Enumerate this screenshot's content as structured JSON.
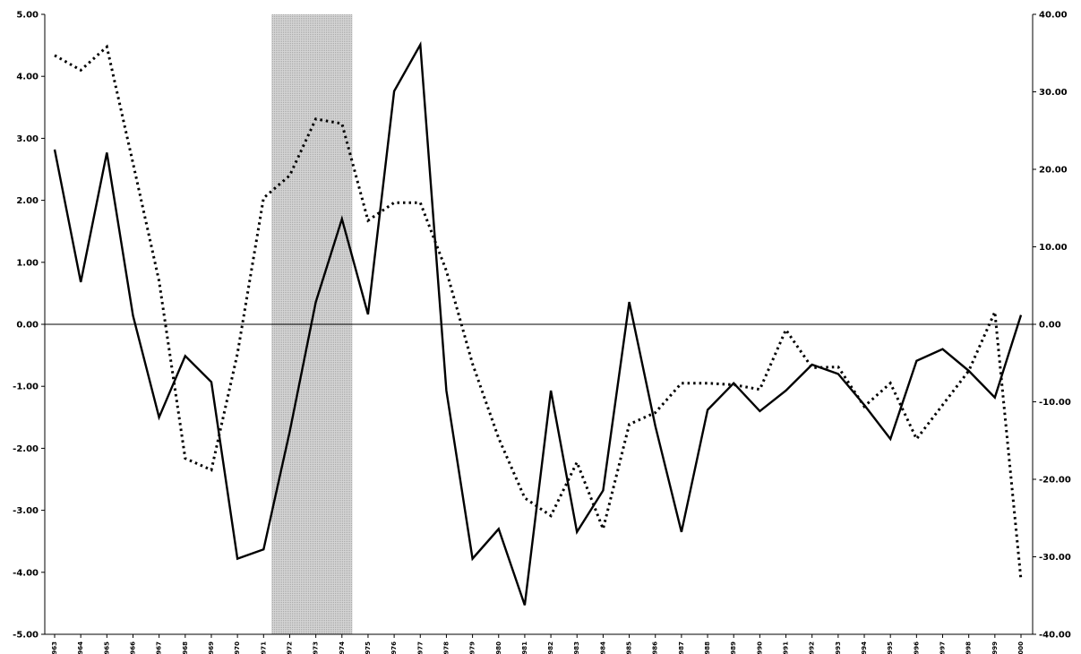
{
  "chart_data": {
    "type": "line",
    "title": "",
    "xlabel": "",
    "ylabel": "",
    "y2label": "",
    "categories": [
      "963",
      "964",
      "965",
      "966",
      "967",
      "968",
      "969",
      "970",
      "1971",
      "972",
      "973",
      "974",
      "975",
      "976",
      "977",
      "978",
      "979",
      "980",
      "1981",
      "982",
      "983",
      "984",
      "985",
      "986",
      "987",
      "988",
      "989",
      "990",
      "1991",
      "992",
      "993",
      "994",
      "995",
      "996",
      "997",
      "998",
      "999",
      "000"
    ],
    "ylim": [
      -5,
      5
    ],
    "y_ticks": [
      "5.00",
      "4.00",
      "3.00",
      "2.00",
      "1.00",
      "0.00",
      "-1.00",
      "-2.00",
      "-3.00",
      "-4.00",
      "-5.00"
    ],
    "y2lim": [
      -40,
      40
    ],
    "y2_ticks": [
      "40.00",
      "30.00",
      "20.00",
      "10.00",
      "0.00",
      "-10.00",
      "-20.00",
      "-30.00",
      "-40.00"
    ],
    "shaded_region": {
      "from": "1971",
      "to": "974"
    },
    "grid": false,
    "zero_line": true,
    "series": [
      {
        "style": "solid",
        "axis": "left",
        "color": "#000000",
        "values": [
          2.82,
          0.68,
          2.77,
          0.14,
          -1.5,
          -0.51,
          -0.93,
          -3.78,
          -3.63,
          -1.73,
          0.36,
          1.7,
          0.16,
          3.76,
          4.51,
          -1.07,
          -3.78,
          -3.3,
          -4.53,
          -1.07,
          -3.35,
          -2.68,
          0.36,
          -1.64,
          -3.35,
          -1.38,
          -0.95,
          -1.4,
          -1.07,
          -0.65,
          -0.8,
          -1.3,
          -1.85,
          -0.59,
          -0.4,
          -0.75,
          -1.18,
          0.15
        ]
      },
      {
        "style": "dotted",
        "axis": "right",
        "color": "#000000",
        "values": [
          34.7,
          32.8,
          35.8,
          20.8,
          5.6,
          -17.3,
          -18.8,
          -3.8,
          16.3,
          19.2,
          26.5,
          25.9,
          13.4,
          15.7,
          15.7,
          6.9,
          -5.1,
          -14.7,
          -22.4,
          -24.7,
          -17.8,
          -26.4,
          -12.9,
          -11.4,
          -7.6,
          -7.6,
          -7.8,
          -8.4,
          -0.7,
          -5.6,
          -5.5,
          -10.6,
          -7.6,
          -14.8,
          -10.4,
          -6.0,
          1.6,
          -33.0
        ]
      }
    ]
  }
}
